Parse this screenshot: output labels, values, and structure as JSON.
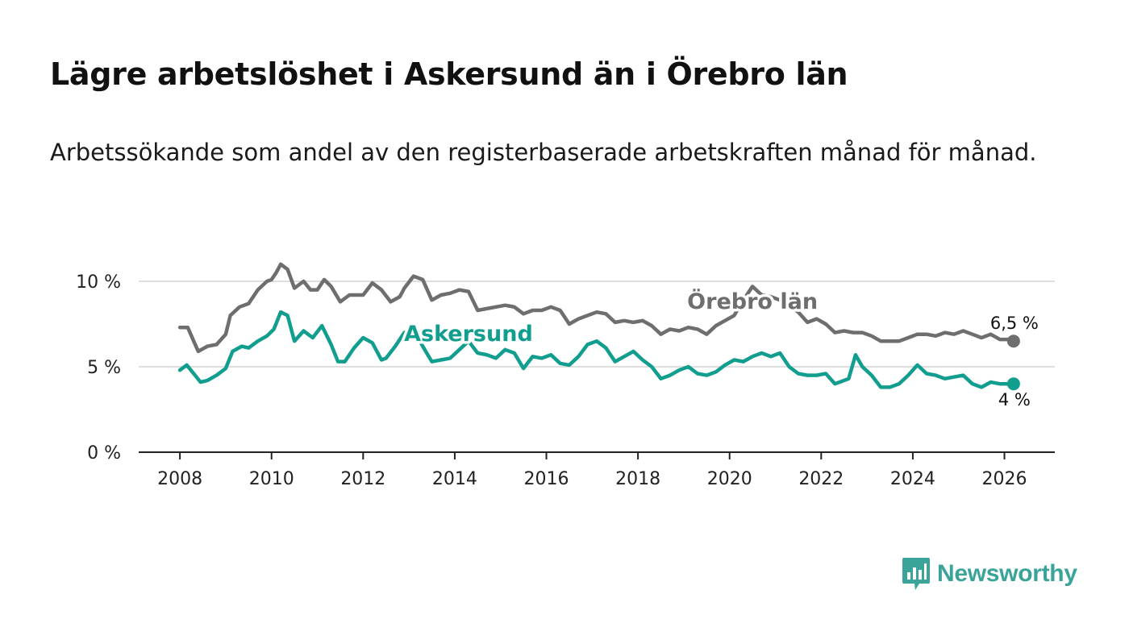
{
  "header": {
    "title": "Lägre arbetslöshet i Askersund än i Örebro län",
    "subtitle": "Arbetssökande som andel av den registerbaserade arbetskraften månad för månad."
  },
  "brand": {
    "name": "Newsworthy",
    "icon": "newsworthy-chart-icon",
    "color": "#3aa39a"
  },
  "chart_data": {
    "type": "line",
    "title": "Lägre arbetslöshet i Askersund än i Örebro län",
    "subtitle": "Arbetssökande som andel av den registerbaserade arbetskraften månad för månad.",
    "xlabel": "",
    "ylabel": "",
    "xlim": [
      2007.1,
      2027.1
    ],
    "ylim": [
      0,
      10
    ],
    "x_ticks": [
      2008,
      2010,
      2012,
      2014,
      2016,
      2018,
      2020,
      2022,
      2024,
      2026
    ],
    "x_tick_labels": [
      "2008",
      "2010",
      "2012",
      "2014",
      "2016",
      "2018",
      "2020",
      "2022",
      "2024",
      "2026"
    ],
    "y_ticks": [
      0,
      5,
      10
    ],
    "y_tick_labels": [
      "0 %",
      "5 %",
      "10 %"
    ],
    "grid": true,
    "series": [
      {
        "name": "Örebro län",
        "color": "#6e6e6e",
        "last_value_label": "6,5 %",
        "points": [
          [
            2008.0,
            7.3
          ],
          [
            2008.17,
            7.3
          ],
          [
            2008.3,
            6.5
          ],
          [
            2008.4,
            5.9
          ],
          [
            2008.6,
            6.2
          ],
          [
            2008.8,
            6.3
          ],
          [
            2009.0,
            6.9
          ],
          [
            2009.1,
            8.0
          ],
          [
            2009.3,
            8.5
          ],
          [
            2009.5,
            8.7
          ],
          [
            2009.7,
            9.5
          ],
          [
            2009.9,
            10.0
          ],
          [
            2010.0,
            10.1
          ],
          [
            2010.1,
            10.5
          ],
          [
            2010.2,
            11.0
          ],
          [
            2010.35,
            10.7
          ],
          [
            2010.5,
            9.6
          ],
          [
            2010.7,
            10.0
          ],
          [
            2010.85,
            9.5
          ],
          [
            2011.0,
            9.5
          ],
          [
            2011.15,
            10.1
          ],
          [
            2011.3,
            9.7
          ],
          [
            2011.5,
            8.8
          ],
          [
            2011.7,
            9.2
          ],
          [
            2012.0,
            9.2
          ],
          [
            2012.2,
            9.9
          ],
          [
            2012.4,
            9.5
          ],
          [
            2012.6,
            8.8
          ],
          [
            2012.8,
            9.1
          ],
          [
            2012.9,
            9.6
          ],
          [
            2013.1,
            10.3
          ],
          [
            2013.3,
            10.1
          ],
          [
            2013.5,
            8.9
          ],
          [
            2013.7,
            9.2
          ],
          [
            2013.9,
            9.3
          ],
          [
            2014.1,
            9.5
          ],
          [
            2014.3,
            9.4
          ],
          [
            2014.5,
            8.3
          ],
          [
            2014.7,
            8.4
          ],
          [
            2014.9,
            8.5
          ],
          [
            2015.1,
            8.6
          ],
          [
            2015.3,
            8.5
          ],
          [
            2015.5,
            8.1
          ],
          [
            2015.7,
            8.3
          ],
          [
            2015.9,
            8.3
          ],
          [
            2016.1,
            8.5
          ],
          [
            2016.3,
            8.3
          ],
          [
            2016.5,
            7.5
          ],
          [
            2016.7,
            7.8
          ],
          [
            2016.9,
            8.0
          ],
          [
            2017.1,
            8.2
          ],
          [
            2017.3,
            8.1
          ],
          [
            2017.5,
            7.6
          ],
          [
            2017.7,
            7.7
          ],
          [
            2017.9,
            7.6
          ],
          [
            2018.1,
            7.7
          ],
          [
            2018.3,
            7.4
          ],
          [
            2018.5,
            6.9
          ],
          [
            2018.7,
            7.2
          ],
          [
            2018.9,
            7.1
          ],
          [
            2019.1,
            7.3
          ],
          [
            2019.3,
            7.2
          ],
          [
            2019.5,
            6.9
          ],
          [
            2019.7,
            7.4
          ],
          [
            2019.9,
            7.7
          ],
          [
            2020.1,
            8.0
          ],
          [
            2020.3,
            8.9
          ],
          [
            2020.5,
            9.7
          ],
          [
            2020.7,
            9.2
          ],
          [
            2020.9,
            9.1
          ],
          [
            2021.1,
            8.9
          ],
          [
            2021.3,
            8.6
          ],
          [
            2021.5,
            8.2
          ],
          [
            2021.7,
            7.6
          ],
          [
            2021.9,
            7.8
          ],
          [
            2022.1,
            7.5
          ],
          [
            2022.3,
            7.0
          ],
          [
            2022.5,
            7.1
          ],
          [
            2022.7,
            7.0
          ],
          [
            2022.9,
            7.0
          ],
          [
            2023.1,
            6.8
          ],
          [
            2023.3,
            6.5
          ],
          [
            2023.5,
            6.5
          ],
          [
            2023.7,
            6.5
          ],
          [
            2023.9,
            6.7
          ],
          [
            2024.1,
            6.9
          ],
          [
            2024.3,
            6.9
          ],
          [
            2024.5,
            6.8
          ],
          [
            2024.7,
            7.0
          ],
          [
            2024.9,
            6.9
          ],
          [
            2025.1,
            7.1
          ],
          [
            2025.3,
            6.9
          ],
          [
            2025.5,
            6.7
          ],
          [
            2025.7,
            6.9
          ],
          [
            2025.9,
            6.6
          ],
          [
            2026.1,
            6.6
          ],
          [
            2026.2,
            6.5
          ]
        ]
      },
      {
        "name": "Askersund",
        "color": "#129e8f",
        "last_value_label": "4 %",
        "points": [
          [
            2008.0,
            4.8
          ],
          [
            2008.15,
            5.1
          ],
          [
            2008.3,
            4.6
          ],
          [
            2008.45,
            4.1
          ],
          [
            2008.6,
            4.2
          ],
          [
            2008.8,
            4.5
          ],
          [
            2009.0,
            4.9
          ],
          [
            2009.15,
            5.9
          ],
          [
            2009.35,
            6.2
          ],
          [
            2009.5,
            6.1
          ],
          [
            2009.7,
            6.5
          ],
          [
            2009.9,
            6.8
          ],
          [
            2010.05,
            7.2
          ],
          [
            2010.2,
            8.2
          ],
          [
            2010.35,
            8.0
          ],
          [
            2010.5,
            6.5
          ],
          [
            2010.7,
            7.1
          ],
          [
            2010.9,
            6.7
          ],
          [
            2011.1,
            7.4
          ],
          [
            2011.3,
            6.3
          ],
          [
            2011.45,
            5.3
          ],
          [
            2011.6,
            5.3
          ],
          [
            2011.8,
            6.1
          ],
          [
            2012.0,
            6.7
          ],
          [
            2012.2,
            6.4
          ],
          [
            2012.4,
            5.4
          ],
          [
            2012.5,
            5.5
          ],
          [
            2012.7,
            6.2
          ],
          [
            2012.9,
            7.0
          ],
          [
            2013.1,
            7.2
          ],
          [
            2013.3,
            6.2
          ],
          [
            2013.5,
            5.3
          ],
          [
            2013.7,
            5.4
          ],
          [
            2013.9,
            5.5
          ],
          [
            2014.1,
            6.0
          ],
          [
            2014.3,
            6.5
          ],
          [
            2014.5,
            5.8
          ],
          [
            2014.7,
            5.7
          ],
          [
            2014.9,
            5.5
          ],
          [
            2015.1,
            6.0
          ],
          [
            2015.3,
            5.8
          ],
          [
            2015.5,
            4.9
          ],
          [
            2015.7,
            5.6
          ],
          [
            2015.9,
            5.5
          ],
          [
            2016.1,
            5.7
          ],
          [
            2016.3,
            5.2
          ],
          [
            2016.5,
            5.1
          ],
          [
            2016.7,
            5.6
          ],
          [
            2016.9,
            6.3
          ],
          [
            2017.1,
            6.5
          ],
          [
            2017.3,
            6.1
          ],
          [
            2017.5,
            5.3
          ],
          [
            2017.7,
            5.6
          ],
          [
            2017.9,
            5.9
          ],
          [
            2018.1,
            5.4
          ],
          [
            2018.3,
            5.0
          ],
          [
            2018.5,
            4.3
          ],
          [
            2018.7,
            4.5
          ],
          [
            2018.9,
            4.8
          ],
          [
            2019.1,
            5.0
          ],
          [
            2019.3,
            4.6
          ],
          [
            2019.5,
            4.5
          ],
          [
            2019.7,
            4.7
          ],
          [
            2019.9,
            5.1
          ],
          [
            2020.1,
            5.4
          ],
          [
            2020.3,
            5.3
          ],
          [
            2020.5,
            5.6
          ],
          [
            2020.7,
            5.8
          ],
          [
            2020.9,
            5.6
          ],
          [
            2021.1,
            5.8
          ],
          [
            2021.3,
            5.0
          ],
          [
            2021.5,
            4.6
          ],
          [
            2021.7,
            4.5
          ],
          [
            2021.9,
            4.5
          ],
          [
            2022.1,
            4.6
          ],
          [
            2022.3,
            4.0
          ],
          [
            2022.5,
            4.2
          ],
          [
            2022.6,
            4.3
          ],
          [
            2022.75,
            5.7
          ],
          [
            2022.9,
            5.0
          ],
          [
            2023.1,
            4.5
          ],
          [
            2023.3,
            3.8
          ],
          [
            2023.5,
            3.8
          ],
          [
            2023.7,
            4.0
          ],
          [
            2023.9,
            4.5
          ],
          [
            2024.1,
            5.1
          ],
          [
            2024.3,
            4.6
          ],
          [
            2024.5,
            4.5
          ],
          [
            2024.7,
            4.3
          ],
          [
            2024.9,
            4.4
          ],
          [
            2025.1,
            4.5
          ],
          [
            2025.3,
            4.0
          ],
          [
            2025.5,
            3.8
          ],
          [
            2025.7,
            4.1
          ],
          [
            2025.9,
            4.0
          ],
          [
            2026.1,
            4.0
          ],
          [
            2026.2,
            4.0
          ]
        ]
      }
    ],
    "annotations": [
      {
        "text": "Örebro län",
        "series": "Örebro län",
        "at_x": 2020.5,
        "at_y": 8.4
      },
      {
        "text": "Askersund",
        "series": "Askersund",
        "at_x": 2014.3,
        "at_y": 6.5
      }
    ]
  }
}
